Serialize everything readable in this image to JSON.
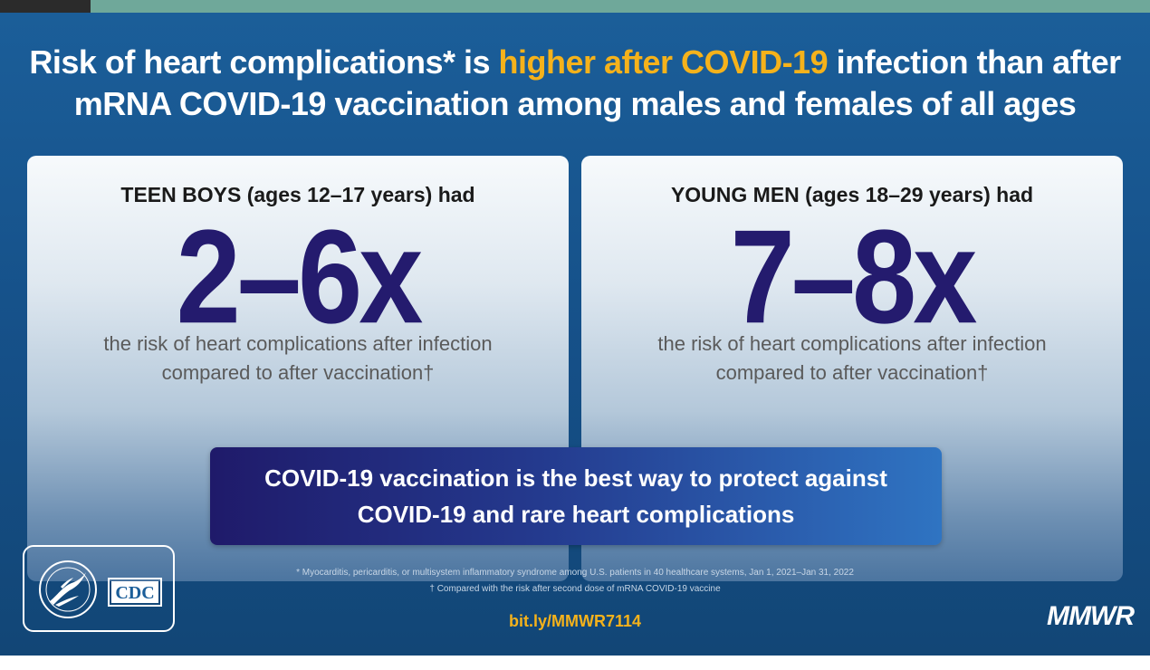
{
  "headline": {
    "part1": "Risk of heart complications* is ",
    "highlight": "higher after COVID-19",
    "part2": " infection than after",
    "line2": "mRNA COVID-19 vaccination among males and females of all ages"
  },
  "cards": [
    {
      "heading": "TEEN BOYS (ages 12–17 years) had",
      "value": "2–6x",
      "sub_line1": "the risk of heart complications after infection",
      "sub_line2": "compared to after vaccination†"
    },
    {
      "heading": "YOUNG MEN (ages 18–29 years) had",
      "value": "7–8x",
      "sub_line1": "the risk of heart complications after infection",
      "sub_line2": "compared to after vaccination†"
    }
  ],
  "banner": {
    "line1": "COVID-19 vaccination is the best way to protect against",
    "line2": "COVID-19 and rare heart complications"
  },
  "footnotes": {
    "asterisk": "* Myocarditis, pericarditis, or multisystem inflammatory syndrome among U.S. patients in 40 healthcare systems, Jan 1, 2021–Jan 31, 2022",
    "dagger": "† Compared with the risk after second dose of mRNA COVID-19 vaccine"
  },
  "link": "bit.ly/MMWR7114",
  "logos": {
    "cdc": "CDC",
    "mmwr": "MMWR",
    "hhs_icon": "hhs-seal-icon"
  },
  "colors": {
    "background": "#1b5e99",
    "highlight": "#f5b21b",
    "big_number": "#241b6e",
    "banner_start": "#1f1a6a",
    "banner_end": "#2f74c2"
  }
}
